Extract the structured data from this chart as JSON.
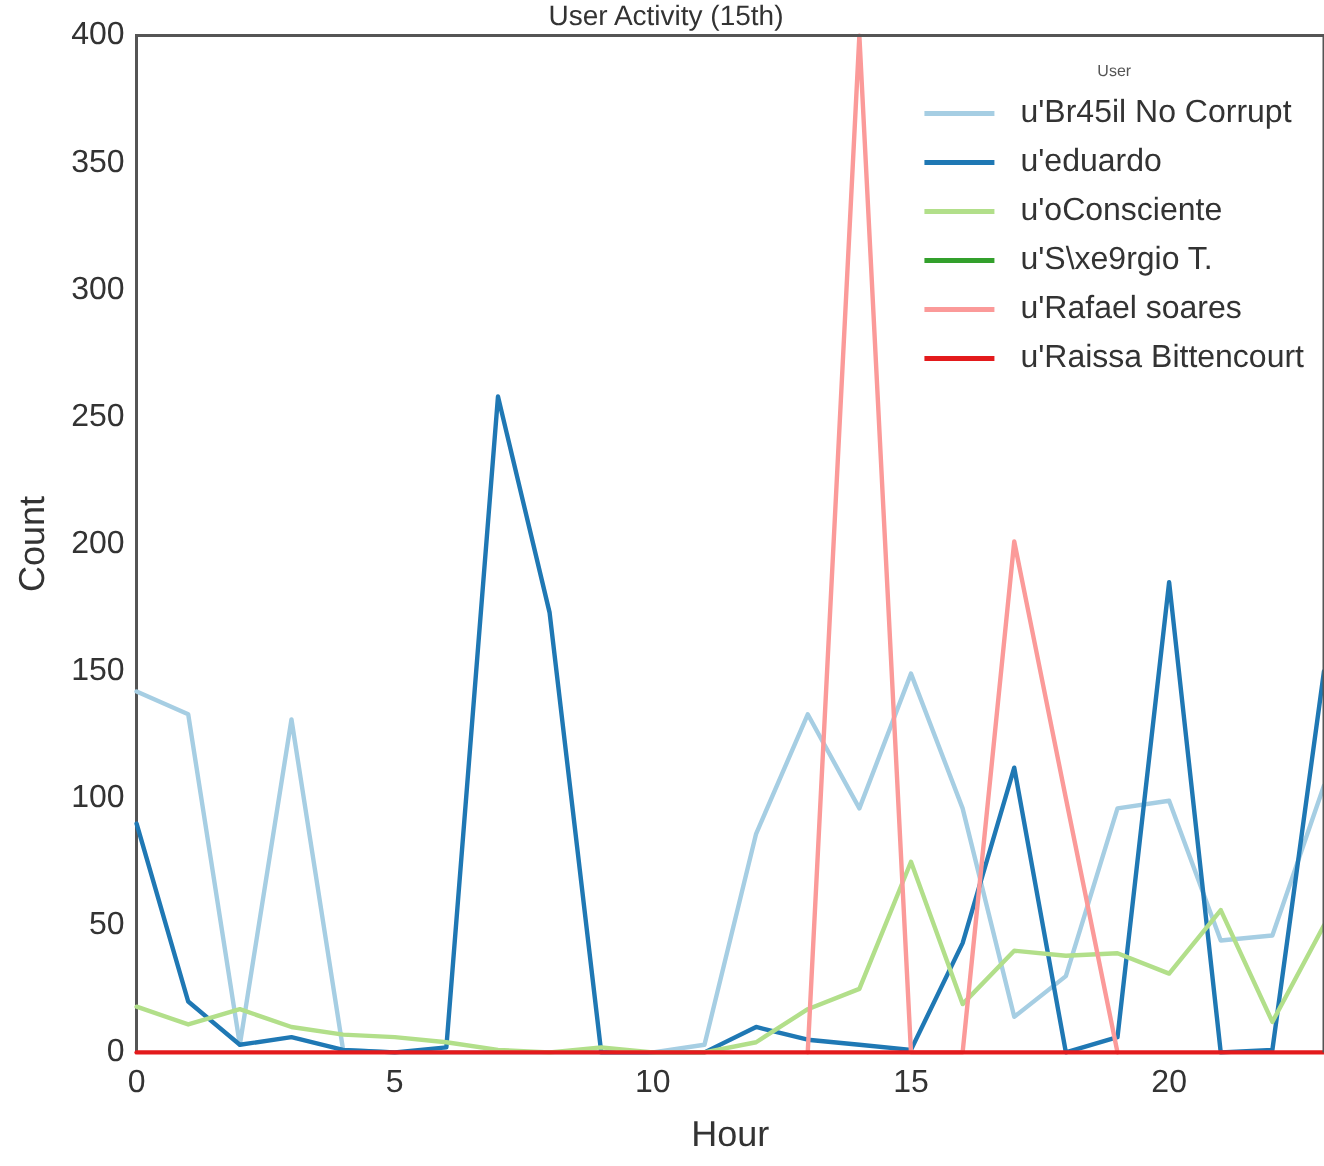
{
  "chart_data": {
    "type": "line",
    "title": "User Activity (15th)",
    "xlabel": "Hour",
    "ylabel": "Count",
    "legend_title": "User",
    "legend": "top right",
    "grid": false,
    "marker": "none",
    "line_style": "solid",
    "x": [
      0,
      1,
      2,
      3,
      4,
      5,
      6,
      7,
      8,
      9,
      10,
      11,
      12,
      13,
      14,
      15,
      16,
      17,
      18,
      19,
      20,
      21,
      22,
      23
    ],
    "xlim": [
      0,
      23
    ],
    "xticks": [
      0,
      5,
      10,
      15,
      20
    ],
    "ylim": [
      0,
      400
    ],
    "yticks": [
      0,
      50,
      100,
      150,
      200,
      250,
      300,
      350,
      400
    ],
    "series": [
      {
        "name": "u'Br45il No Corrupt",
        "color": "#a6cee3",
        "values": [
          142,
          133,
          3,
          131,
          1,
          0,
          0,
          0,
          0,
          0,
          0,
          3,
          86,
          133,
          96,
          149,
          96,
          14,
          30,
          96,
          99,
          44,
          46,
          105
        ]
      },
      {
        "name": "u'eduardo",
        "color": "#1f78b4",
        "values": [
          90,
          20,
          3,
          6,
          1,
          0,
          2,
          258,
          173,
          0,
          0,
          0,
          10,
          5,
          3,
          1,
          43,
          112,
          0,
          6,
          185,
          0,
          1,
          150
        ]
      },
      {
        "name": "u'oConsciente",
        "color": "#b2df8a",
        "values": [
          18,
          11,
          17,
          10,
          7,
          6,
          4,
          1,
          0,
          2,
          0,
          0,
          4,
          17,
          25,
          75,
          19,
          40,
          38,
          39,
          31,
          56,
          12,
          50
        ]
      },
      {
        "name": "u'S\\xe9rgio T.",
        "color": "#33a02c",
        "values": [
          null,
          null,
          null,
          null,
          null,
          null,
          null,
          null,
          null,
          null,
          null,
          null,
          null,
          null,
          null,
          null,
          null,
          null,
          null,
          null,
          null,
          null,
          null,
          null
        ]
      },
      {
        "name": "u'Rafael soares",
        "color": "#fb9a99",
        "values": [
          null,
          null,
          null,
          null,
          null,
          null,
          null,
          null,
          null,
          null,
          null,
          null,
          null,
          0,
          400,
          0,
          0,
          201,
          100,
          0,
          null,
          null,
          null,
          null
        ]
      },
      {
        "name": "u'Raissa Bittencourt",
        "color": "#e31a1c",
        "values": [
          0,
          0,
          0,
          0,
          0,
          0,
          0,
          0,
          0,
          0,
          0,
          0,
          0,
          0,
          0,
          0,
          0,
          0,
          0,
          0,
          0,
          0,
          0,
          0
        ]
      }
    ]
  }
}
